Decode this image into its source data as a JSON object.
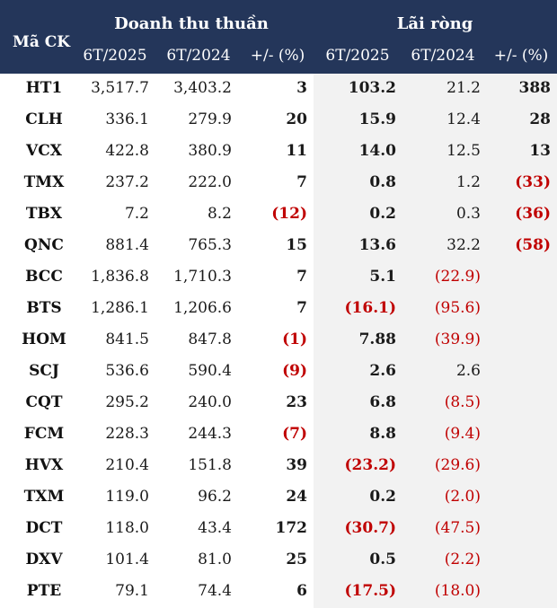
{
  "header": {
    "code": "Mã CK",
    "revenue_group": "Doanh thu thuần",
    "profit_group": "Lãi ròng",
    "rev_2025": "6T/2025",
    "rev_2024": "6T/2024",
    "rev_change": "+/- (%)",
    "profit_2025": "6T/2025",
    "profit_2024": "6T/2024",
    "profit_change": "+/- (%)"
  },
  "rows": [
    {
      "code": "HT1",
      "r25": "3,517.7",
      "r24": "3,403.2",
      "rc": "3",
      "p25": "103.2",
      "p24": "21.2",
      "pc": "388"
    },
    {
      "code": "CLH",
      "r25": "336.1",
      "r24": "279.9",
      "rc": "20",
      "p25": "15.9",
      "p24": "12.4",
      "pc": "28"
    },
    {
      "code": "VCX",
      "r25": "422.8",
      "r24": "380.9",
      "rc": "11",
      "p25": "14.0",
      "p24": "12.5",
      "pc": "13"
    },
    {
      "code": "TMX",
      "r25": "237.2",
      "r24": "222.0",
      "rc": "7",
      "p25": "0.8",
      "p24": "1.2",
      "pc": "(33)"
    },
    {
      "code": "TBX",
      "r25": "7.2",
      "r24": "8.2",
      "rc": "(12)",
      "p25": "0.2",
      "p24": "0.3",
      "pc": "(36)"
    },
    {
      "code": "QNC",
      "r25": "881.4",
      "r24": "765.3",
      "rc": "15",
      "p25": "13.6",
      "p24": "32.2",
      "pc": "(58)"
    },
    {
      "code": "BCC",
      "r25": "1,836.8",
      "r24": "1,710.3",
      "rc": "7",
      "p25": "5.1",
      "p24": "(22.9)",
      "pc": ""
    },
    {
      "code": "BTS",
      "r25": "1,286.1",
      "r24": "1,206.6",
      "rc": "7",
      "p25": "(16.1)",
      "p24": "(95.6)",
      "pc": ""
    },
    {
      "code": "HOM",
      "r25": "841.5",
      "r24": "847.8",
      "rc": "(1)",
      "p25": "7.88",
      "p24": "(39.9)",
      "pc": ""
    },
    {
      "code": "SCJ",
      "r25": "536.6",
      "r24": "590.4",
      "rc": "(9)",
      "p25": "2.6",
      "p24": "2.6",
      "pc": ""
    },
    {
      "code": "CQT",
      "r25": "295.2",
      "r24": "240.0",
      "rc": "23",
      "p25": "6.8",
      "p24": "(8.5)",
      "pc": ""
    },
    {
      "code": "FCM",
      "r25": "228.3",
      "r24": "244.3",
      "rc": "(7)",
      "p25": "8.8",
      "p24": "(9.4)",
      "pc": ""
    },
    {
      "code": "HVX",
      "r25": "210.4",
      "r24": "151.8",
      "rc": "39",
      "p25": "(23.2)",
      "p24": "(29.6)",
      "pc": ""
    },
    {
      "code": "TXM",
      "r25": "119.0",
      "r24": "96.2",
      "rc": "24",
      "p25": "0.2",
      "p24": "(2.0)",
      "pc": ""
    },
    {
      "code": "DCT",
      "r25": "118.0",
      "r24": "43.4",
      "rc": "172",
      "p25": "(30.7)",
      "p24": "(47.5)",
      "pc": ""
    },
    {
      "code": "DXV",
      "r25": "101.4",
      "r24": "81.0",
      "rc": "25",
      "p25": "0.5",
      "p24": "(2.2)",
      "pc": ""
    },
    {
      "code": "PTE",
      "r25": "79.1",
      "r24": "74.4",
      "rc": "6",
      "p25": "(17.5)",
      "p24": "(18.0)",
      "pc": ""
    }
  ],
  "colors": {
    "header_bg": "#24365a",
    "header_text": "#ffffff",
    "negative": "#c00000",
    "profit_section_bg": "#f2f2f2"
  }
}
